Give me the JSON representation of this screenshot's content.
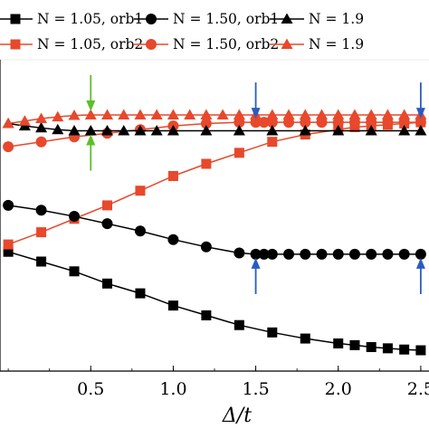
{
  "chart_data": {
    "type": "line",
    "title": "",
    "xlabel": "Δ/t",
    "ylabel": "",
    "xlim": [
      -0.05,
      2.55
    ],
    "ylim": [
      0.0,
      1.0
    ],
    "x_ticks": [
      0.5,
      1.0,
      1.5,
      2.0,
      2.5
    ],
    "x_tick_labels": [
      "0.5",
      "1.0",
      "1.5",
      "2.0",
      "2.5"
    ],
    "grid": false,
    "legend": {
      "placement": "top",
      "entries": [
        {
          "text": "N = 1.05, orb1",
          "series": 0
        },
        {
          "text": "N = 1.50, orb1",
          "series": 2
        },
        {
          "text": "N = 1.9",
          "series": 4
        },
        {
          "text": "N = 1.05, orb2",
          "series": 1
        },
        {
          "text": "N = 1.50, orb2",
          "series": 3
        },
        {
          "text": "N = 1.9",
          "series": 5
        }
      ]
    },
    "series": [
      {
        "name": "N = 1.05, orb1",
        "color": "#000000",
        "marker": "square",
        "x": [
          0.0,
          0.2,
          0.4,
          0.6,
          0.8,
          1.0,
          1.2,
          1.4,
          1.6,
          1.8,
          2.0,
          2.1,
          2.2,
          2.3,
          2.4,
          2.5
        ],
        "y": [
          0.44,
          0.4,
          0.36,
          0.31,
          0.27,
          0.22,
          0.18,
          0.14,
          0.11,
          0.085,
          0.065,
          0.058,
          0.05,
          0.045,
          0.04,
          0.037
        ]
      },
      {
        "name": "N = 1.05, orb2",
        "color": "#e8482b",
        "marker": "square",
        "x": [
          0.0,
          0.2,
          0.4,
          0.6,
          0.8,
          1.0,
          1.2,
          1.4,
          1.6,
          1.8,
          2.0,
          2.1,
          2.2,
          2.3,
          2.4,
          2.5
        ],
        "y": [
          0.47,
          0.52,
          0.575,
          0.63,
          0.69,
          0.75,
          0.8,
          0.845,
          0.89,
          0.92,
          0.94,
          0.95,
          0.955,
          0.96,
          0.965,
          0.97
        ]
      },
      {
        "name": "N = 1.50, orb1",
        "color": "#000000",
        "marker": "circle",
        "x": [
          0.0,
          0.2,
          0.4,
          0.6,
          0.8,
          1.0,
          1.2,
          1.4,
          1.5,
          1.55,
          1.6,
          1.7,
          1.8,
          1.9,
          2.0,
          2.1,
          2.2,
          2.3,
          2.4,
          2.5
        ],
        "y": [
          0.63,
          0.61,
          0.585,
          0.555,
          0.525,
          0.49,
          0.46,
          0.435,
          0.43,
          0.43,
          0.43,
          0.43,
          0.43,
          0.43,
          0.43,
          0.43,
          0.43,
          0.43,
          0.43,
          0.43
        ]
      },
      {
        "name": "N = 1.50, orb2",
        "color": "#e8482b",
        "marker": "circle",
        "x": [
          0.0,
          0.2,
          0.4,
          0.6,
          0.8,
          1.0,
          1.2,
          1.4,
          1.5,
          1.55,
          1.6,
          1.7,
          1.8,
          1.9,
          2.0,
          2.1,
          2.2,
          2.3,
          2.4,
          2.5
        ],
        "y": [
          0.87,
          0.89,
          0.91,
          0.925,
          0.94,
          0.955,
          0.965,
          0.97,
          0.97,
          0.97,
          0.97,
          0.97,
          0.97,
          0.97,
          0.97,
          0.97,
          0.97,
          0.97,
          0.97,
          0.97
        ]
      },
      {
        "name": "N = 1.9",
        "color": "#000000",
        "marker": "triangle",
        "x": [
          0.0,
          0.1,
          0.2,
          0.3,
          0.4,
          0.5,
          0.6,
          0.7,
          0.8,
          0.9,
          1.0,
          1.2,
          1.4,
          1.6,
          1.8,
          2.0,
          2.2,
          2.4,
          2.5
        ],
        "y": [
          0.965,
          0.955,
          0.947,
          0.94,
          0.935,
          0.935,
          0.935,
          0.935,
          0.935,
          0.935,
          0.935,
          0.935,
          0.935,
          0.935,
          0.935,
          0.935,
          0.935,
          0.935,
          0.935
        ]
      },
      {
        "name": "N = 1.9",
        "color": "#e8482b",
        "marker": "triangle",
        "x": [
          0.0,
          0.1,
          0.2,
          0.3,
          0.4,
          0.5,
          0.6,
          0.7,
          0.8,
          0.9,
          1.0,
          1.1,
          1.2,
          1.3,
          1.4,
          1.5,
          1.6,
          1.7,
          1.8,
          1.9,
          2.0,
          2.1,
          2.2,
          2.3,
          2.4,
          2.5
        ],
        "y": [
          0.965,
          0.975,
          0.985,
          0.992,
          0.998,
          1.0,
          1.0,
          1.0,
          1.0,
          1.0,
          1.0,
          1.0,
          1.0,
          1.0,
          1.0,
          1.0,
          1.0,
          1.0,
          1.0,
          1.0,
          1.0,
          1.0,
          1.0,
          1.0,
          1.0,
          1.0
        ]
      }
    ],
    "annotations": [
      {
        "type": "arrow-down",
        "x": 0.5,
        "y": 1.0,
        "color": "#5cbf2a"
      },
      {
        "type": "arrow-up",
        "x": 0.5,
        "y": 0.935,
        "color": "#5cbf2a"
      },
      {
        "type": "arrow-down",
        "x": 1.5,
        "y": 0.97,
        "color": "#2a5cc0"
      },
      {
        "type": "arrow-up",
        "x": 1.5,
        "y": 0.43,
        "color": "#2a5cc0"
      },
      {
        "type": "arrow-down",
        "x": 2.5,
        "y": 0.97,
        "color": "#2a5cc0"
      },
      {
        "type": "arrow-up",
        "x": 2.5,
        "y": 0.43,
        "color": "#2a5cc0"
      }
    ]
  }
}
